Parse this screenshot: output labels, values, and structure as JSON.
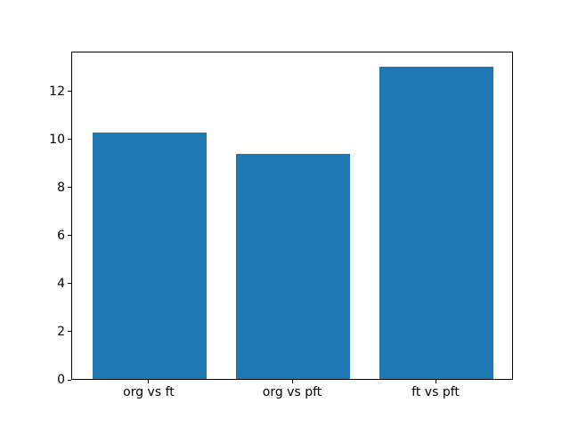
{
  "chart_data": {
    "type": "bar",
    "categories": [
      "org vs ft",
      "org vs pft",
      "ft vs pft"
    ],
    "values": [
      10.25,
      9.35,
      13.0
    ],
    "title": "",
    "xlabel": "",
    "ylabel": "",
    "ylim": [
      0,
      13.65
    ],
    "xlim": [
      -0.54,
      2.54
    ],
    "yticks": [
      0,
      2,
      4,
      6,
      8,
      10,
      12
    ],
    "bar_width": 0.8,
    "bar_color": "#1f77b4",
    "background_color": "#ffffff",
    "spine_color": "#000000",
    "grid": false,
    "legend": null
  }
}
